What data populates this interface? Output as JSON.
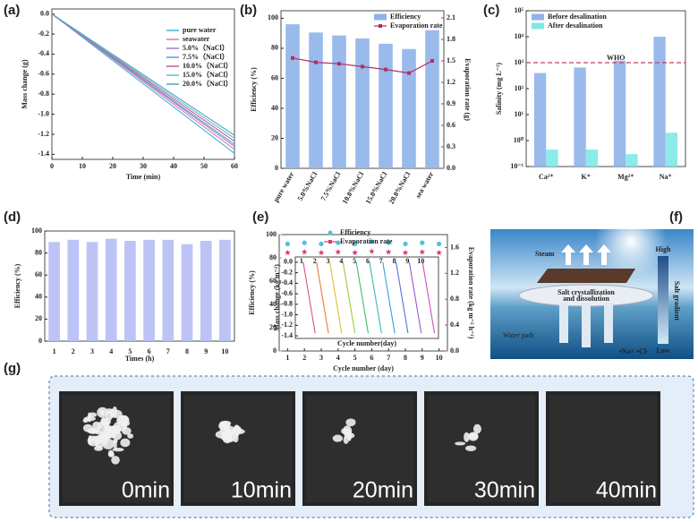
{
  "chart_data": [
    {
      "type": "line",
      "panel_label": "(a)",
      "x_label": "Time (min)",
      "y_label": "Mass change (g)",
      "x": [
        0,
        60
      ],
      "xlim": [
        0,
        60
      ],
      "xticks": [
        0,
        10,
        20,
        30,
        40,
        50,
        60
      ],
      "ylim": [
        -1.45,
        0.05
      ],
      "yticks": [
        {
          "value": 0,
          "label": "0.0"
        },
        -0.2,
        -0.4,
        -0.6,
        -0.8,
        {
          "value": -1,
          "label": "-1.0"
        },
        -1.2,
        -1.4
      ],
      "series": [
        {
          "name": "pure water",
          "color": "#3fb6d6",
          "values": [
            0,
            -1.39
          ]
        },
        {
          "name": "seawater",
          "color": "#e07ab0",
          "values": [
            0,
            -1.35
          ]
        },
        {
          "name": "5.0%（NaCl）",
          "color": "#9a7fd1",
          "values": [
            0,
            -1.32
          ]
        },
        {
          "name": "7.5%（NaCl）",
          "color": "#5a9ec8",
          "values": [
            0,
            -1.3
          ]
        },
        {
          "name": "10.0%（NaCl）",
          "color": "#c65a9e",
          "values": [
            0,
            -1.27
          ]
        },
        {
          "name": "15.0%（NaCl）",
          "color": "#6fc0b0",
          "values": [
            0,
            -1.24
          ]
        },
        {
          "name": "20.0%（NaCl）",
          "color": "#4aa8c8",
          "values": [
            0,
            -1.21
          ]
        }
      ]
    },
    {
      "type": "bar",
      "panel_label": "(b)",
      "y_label": "Efficiency (%)",
      "y2_label": "Evaporation rate (g)",
      "y2_axis_color": "#b03060",
      "categories": [
        "pure water",
        "5.0%NaCl",
        "7.5%NaCl",
        "10.0%NaCl",
        "15.0%NaCl",
        "20.0%NaCl",
        "sea water"
      ],
      "ylim": [
        0,
        105
      ],
      "yticks": [
        0,
        20,
        40,
        60,
        80,
        100
      ],
      "y2lim": [
        0,
        2.2
      ],
      "y2ticks": [
        {
          "value": 0,
          "label": "0.0"
        },
        0.3,
        0.6,
        0.9,
        1.2,
        1.5,
        1.8,
        2.1
      ],
      "series": [
        {
          "name": "Efficiency",
          "color": "#8fb3ea",
          "values": [
            96,
            90.5,
            88.5,
            86.5,
            83,
            79.5,
            92
          ]
        },
        {
          "name": "Evaporation rate",
          "color": "#b03060",
          "axis": "y2",
          "values": [
            1.54,
            1.48,
            1.46,
            1.42,
            1.38,
            1.33,
            1.5
          ]
        }
      ]
    },
    {
      "type": "bar",
      "panel_label": "(c)",
      "y_label": "Salinity (mg L⁻¹)",
      "log_scale": true,
      "categories": [
        "Ca²⁺",
        "K⁺",
        "Mg²⁺",
        "Na⁺"
      ],
      "ylim": [
        0.1,
        100000
      ],
      "yticks": [
        {
          "value": 0.1,
          "label": "10⁻¹"
        },
        {
          "value": 1,
          "label": "10⁰"
        },
        {
          "value": 10,
          "label": "10¹"
        },
        {
          "value": 100,
          "label": "10²"
        },
        {
          "value": 1000,
          "label": "10³"
        },
        {
          "value": 10000,
          "label": "10⁴"
        },
        {
          "value": 100000,
          "label": "10⁵"
        }
      ],
      "reference_line": {
        "value": 1000,
        "label": "WHO",
        "color": "#c04060"
      },
      "series": [
        {
          "name": "Before desalination",
          "color": "#8fb3ea",
          "values": [
            400,
            650,
            1200,
            10000
          ]
        },
        {
          "name": "After desalination",
          "color": "#7fe8e8",
          "values": [
            0.45,
            0.45,
            0.3,
            2
          ]
        }
      ]
    },
    {
      "type": "bar",
      "panel_label": "(d)",
      "x_label": "Times (h)",
      "y_label": "Efficiency (%)",
      "categories": [
        "1",
        "2",
        "3",
        "4",
        "5",
        "6",
        "7",
        "8",
        "9",
        "10"
      ],
      "ylim": [
        0,
        100
      ],
      "yticks": [
        0,
        20,
        40,
        60,
        80,
        100
      ],
      "series": [
        {
          "color": "#b7bdf5",
          "values": [
            90,
            92,
            90,
            93,
            91,
            92,
            92,
            88,
            91,
            92
          ]
        }
      ]
    },
    {
      "type": "scatter",
      "panel_label": "(e)",
      "x_label": "Cycle number (day)",
      "y_label": "Efficiency (%)",
      "y2_label": "Evaporation rate (kg m⁻² h⁻¹)",
      "y_axis_color": "#3cbfd6",
      "y2_axis_color": "#d04070",
      "x": [
        1,
        2,
        3,
        4,
        5,
        6,
        7,
        8,
        9,
        10
      ],
      "xlim": [
        0.5,
        10.5
      ],
      "xticks": [
        1,
        2,
        3,
        4,
        5,
        6,
        7,
        8,
        9,
        10
      ],
      "ylim": [
        0,
        100
      ],
      "yticks": [
        0,
        20,
        40,
        60,
        80,
        100
      ],
      "y2lim": [
        0,
        1.8
      ],
      "y2ticks": [
        {
          "value": 0,
          "label": "0.0"
        },
        0.4,
        0.8,
        1.2,
        1.6
      ],
      "series": [
        {
          "name": "Efficiency",
          "color": "#4cc4d8",
          "marker": "circle",
          "values": [
            92,
            93,
            92,
            93,
            92,
            94,
            93,
            92,
            93,
            92
          ]
        },
        {
          "name": "Evaporation rate",
          "color": "#d04070",
          "marker": "star",
          "axis": "y2",
          "values": [
            1.52,
            1.53,
            1.52,
            1.53,
            1.52,
            1.54,
            1.53,
            1.52,
            1.53,
            1.52
          ]
        }
      ]
    },
    {
      "type": "line",
      "x_label": "Cycle number(day)",
      "y_label": "Mass change (kg m⁻²)",
      "xlim": [
        0.6,
        11.4
      ],
      "ylim": [
        -1.45,
        0.1
      ],
      "yticks": [
        {
          "value": 0,
          "label": "0.0"
        },
        -0.2,
        -0.4,
        -0.6,
        -0.8,
        {
          "value": -1,
          "label": "-1.0"
        },
        -1.2,
        -1.4
      ],
      "series": [
        {
          "name": "1",
          "color": "#e0508a",
          "x": [
            1.2,
            2.1
          ],
          "values": [
            0,
            -1.35
          ]
        },
        {
          "name": "2",
          "color": "#f07a3a",
          "x": [
            2.2,
            3.1
          ],
          "values": [
            0,
            -1.35
          ]
        },
        {
          "name": "3",
          "color": "#e0c030",
          "x": [
            3.2,
            4.1
          ],
          "values": [
            0,
            -1.35
          ]
        },
        {
          "name": "4",
          "color": "#9ccf3a",
          "x": [
            4.2,
            5.1
          ],
          "values": [
            0,
            -1.35
          ]
        },
        {
          "name": "5",
          "color": "#3cc06a",
          "x": [
            5.2,
            6.1
          ],
          "values": [
            0,
            -1.35
          ]
        },
        {
          "name": "6",
          "color": "#30c0b0",
          "x": [
            6.2,
            7.1
          ],
          "values": [
            0,
            -1.35
          ]
        },
        {
          "name": "7",
          "color": "#3aa0e0",
          "x": [
            7.2,
            8.1
          ],
          "values": [
            0,
            -1.35
          ]
        },
        {
          "name": "8",
          "color": "#5a70e0",
          "x": [
            8.2,
            9.1
          ],
          "values": [
            0,
            -1.35
          ]
        },
        {
          "name": "9",
          "color": "#9a5ad8",
          "x": [
            9.2,
            10.1
          ],
          "values": [
            0,
            -1.35
          ]
        },
        {
          "name": "10",
          "color": "#d050c0",
          "x": [
            10.2,
            11.1
          ],
          "values": [
            0,
            -1.35
          ]
        }
      ]
    }
  ],
  "diagram": {
    "panel_label": "(f)",
    "steam": "Steam",
    "high": "High",
    "low": "Low",
    "gradient": "Salt gradient",
    "process": [
      "Salt crystallization",
      "and dissolution"
    ],
    "water_path": "Water path",
    "ions": "•Na+ •Cl-"
  },
  "photos": {
    "panel_label": "(g)",
    "captions": [
      "0min",
      "10min",
      "20min",
      "30min",
      "40min"
    ]
  }
}
